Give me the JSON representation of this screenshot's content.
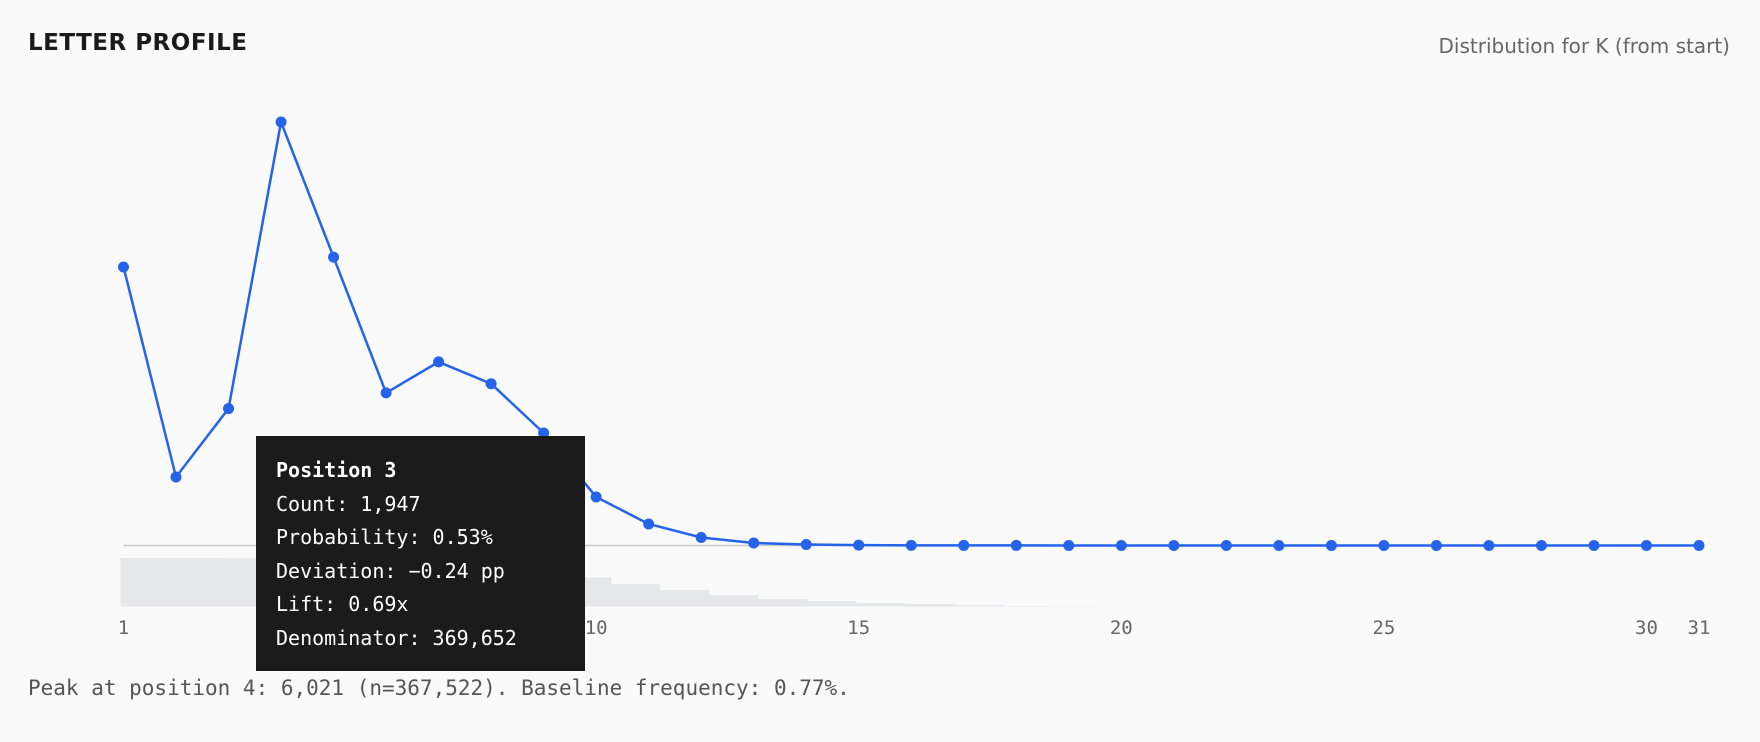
{
  "header": {
    "title": "LETTER PROFILE",
    "subtitle": "Distribution for K (from start)"
  },
  "footer": {
    "summary": "Peak at position 4: 6,021 (n=367,522). Baseline frequency: 0.77%."
  },
  "tooltip": {
    "title": "Position 3",
    "lines": [
      "Count: 1,947",
      "Probability: 0.53%",
      "Deviation: −0.24 pp",
      "Lift: 0.69x",
      "Denominator: 369,652"
    ]
  },
  "colors": {
    "line": "#2563eb",
    "denominator_bars": "#e5e7eb",
    "zero_line": "#c8c8c8",
    "tooltip_bg": "#1b1b1b"
  },
  "chart_data": {
    "type": "line",
    "title": "LETTER PROFILE",
    "subtitle": "Distribution for K (from start)",
    "x": [
      1,
      2,
      3,
      4,
      5,
      6,
      7,
      8,
      9,
      10,
      11,
      12,
      13,
      14,
      15,
      16,
      17,
      18,
      19,
      20,
      21,
      22,
      23,
      24,
      25,
      26,
      27,
      28,
      29,
      30,
      31
    ],
    "xticks": [
      "1",
      "10",
      "15",
      "20",
      "25",
      "30",
      "31"
    ],
    "xtick_values": [
      1,
      10,
      15,
      20,
      25,
      30,
      31
    ],
    "xlim": [
      1,
      31
    ],
    "series": [
      {
        "values": [
          3960,
          974,
          1947,
          6021,
          4100,
          2170,
          2610,
          2300,
          1600,
          690,
          306,
          114,
          36,
          14,
          5,
          2,
          1,
          1,
          0,
          0,
          0,
          0,
          0,
          0,
          0,
          0,
          0,
          0,
          0,
          0,
          0
        ]
      }
    ],
    "denominators": [
      370000,
      370000,
      369652,
      367522,
      367000,
      366000,
      365000,
      364000,
      362000,
      221000,
      172000,
      126000,
      88000,
      57000,
      42000,
      27000,
      19000,
      11000,
      3000,
      1000,
      0,
      0,
      0,
      0,
      0,
      0,
      0,
      0,
      0,
      0,
      0
    ],
    "ylim": [
      0,
      6021
    ],
    "grid": false,
    "legend": "none"
  }
}
